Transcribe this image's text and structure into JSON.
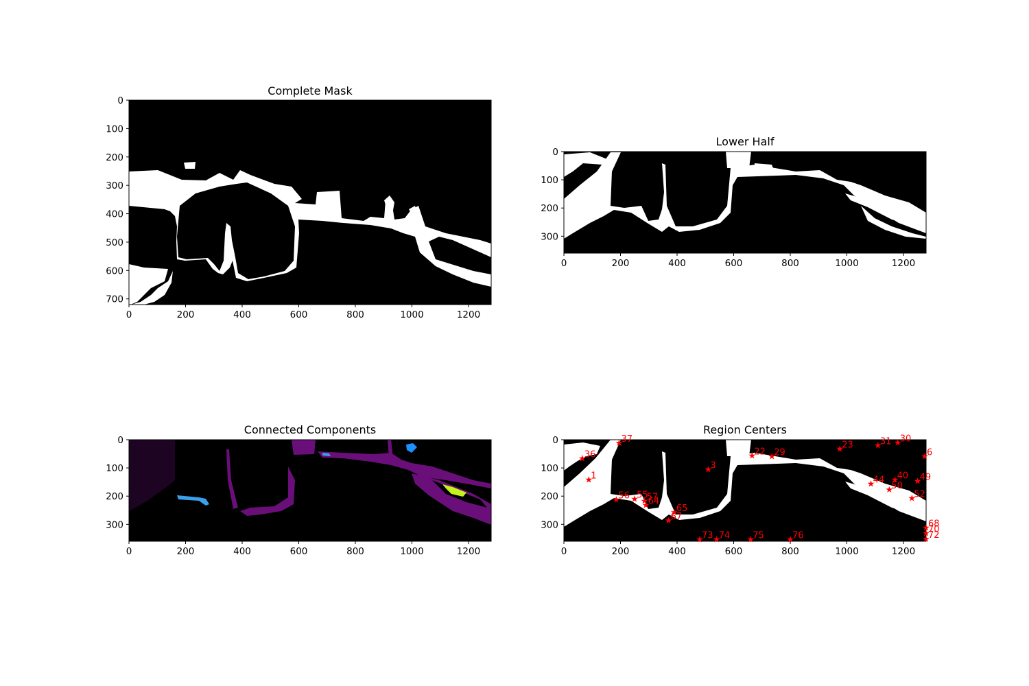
{
  "figure": {
    "panels": [
      {
        "title": "Complete Mask",
        "xticks": [
          "0",
          "200",
          "400",
          "600",
          "800",
          "1000",
          "1200"
        ],
        "yticks": [
          "0",
          "100",
          "200",
          "300",
          "400",
          "500",
          "600",
          "700"
        ]
      },
      {
        "title": "Lower Half",
        "xticks": [
          "0",
          "200",
          "400",
          "600",
          "800",
          "1000",
          "1200"
        ],
        "yticks": [
          "0",
          "100",
          "200",
          "300"
        ]
      },
      {
        "title": "Connected Components",
        "xticks": [
          "0",
          "200",
          "400",
          "600",
          "800",
          "1000",
          "1200"
        ],
        "yticks": [
          "0",
          "100",
          "200",
          "300"
        ]
      },
      {
        "title": "Region Centers",
        "xticks": [
          "0",
          "200",
          "400",
          "600",
          "800",
          "1000",
          "1200"
        ],
        "yticks": [
          "0",
          "100",
          "200",
          "300"
        ]
      }
    ]
  },
  "chart_data": [
    {
      "type": "heatmap",
      "title": "Complete Mask",
      "xlim": [
        0,
        1280
      ],
      "ylim": [
        720,
        0
      ],
      "colormap": "gray"
    },
    {
      "type": "heatmap",
      "title": "Lower Half",
      "xlim": [
        0,
        1280
      ],
      "ylim": [
        360,
        0
      ],
      "colormap": "gray"
    },
    {
      "type": "heatmap",
      "title": "Connected Components",
      "xlim": [
        0,
        1280
      ],
      "ylim": [
        360,
        0
      ],
      "colormap": "nipy_spectral"
    },
    {
      "type": "scatter",
      "title": "Region Centers",
      "xlim": [
        0,
        1280
      ],
      "ylim": [
        360,
        0
      ],
      "marker_color": "#ff0000",
      "points": [
        {
          "label": "1",
          "x": 88,
          "y": 140
        },
        {
          "label": "3",
          "x": 510,
          "y": 103
        },
        {
          "label": "6",
          "x": 1275,
          "y": 57
        },
        {
          "label": "22",
          "x": 665,
          "y": 55
        },
        {
          "label": "23",
          "x": 975,
          "y": 30
        },
        {
          "label": "29",
          "x": 735,
          "y": 57
        },
        {
          "label": "30",
          "x": 1180,
          "y": 8
        },
        {
          "label": "31",
          "x": 1110,
          "y": 18
        },
        {
          "label": "36",
          "x": 65,
          "y": 65
        },
        {
          "label": "37",
          "x": 195,
          "y": 10
        },
        {
          "label": "40",
          "x": 1170,
          "y": 140
        },
        {
          "label": "44",
          "x": 1085,
          "y": 155
        },
        {
          "label": "49",
          "x": 1250,
          "y": 145
        },
        {
          "label": "50",
          "x": 1150,
          "y": 175
        },
        {
          "label": "52",
          "x": 1230,
          "y": 205
        },
        {
          "label": "55",
          "x": 250,
          "y": 208
        },
        {
          "label": "56",
          "x": 185,
          "y": 210
        },
        {
          "label": "57",
          "x": 285,
          "y": 215
        },
        {
          "label": "64",
          "x": 290,
          "y": 230
        },
        {
          "label": "65",
          "x": 390,
          "y": 255
        },
        {
          "label": "67",
          "x": 370,
          "y": 285
        },
        {
          "label": "68",
          "x": 1280,
          "y": 310
        },
        {
          "label": "70",
          "x": 1280,
          "y": 330
        },
        {
          "label": "72",
          "x": 1280,
          "y": 350
        },
        {
          "label": "73",
          "x": 480,
          "y": 352
        },
        {
          "label": "74",
          "x": 540,
          "y": 352
        },
        {
          "label": "75",
          "x": 660,
          "y": 352
        },
        {
          "label": "76",
          "x": 800,
          "y": 352
        }
      ]
    }
  ]
}
